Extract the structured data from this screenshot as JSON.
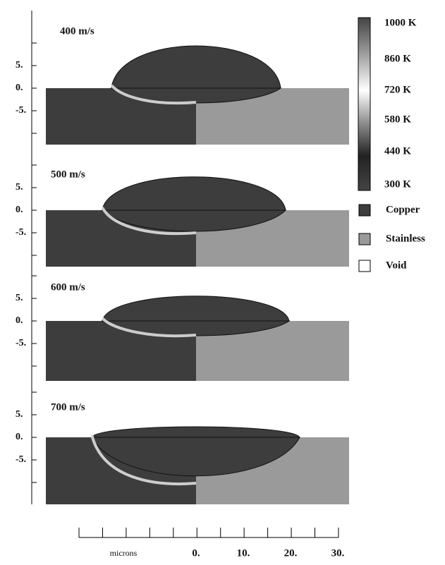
{
  "panels": [
    {
      "label": "400 m/s",
      "yticks": [
        "5.",
        "0.",
        "-5."
      ]
    },
    {
      "label": "500 m/s",
      "yticks": [
        "5.",
        "0.",
        "-5."
      ]
    },
    {
      "label": "600 m/s",
      "yticks": [
        "5.",
        "0.",
        "-5."
      ]
    },
    {
      "label": "700 m/s",
      "yticks": [
        "5.",
        "0.",
        "-5."
      ]
    }
  ],
  "colorbar": {
    "labels": [
      "1000 K",
      "860 K",
      "720 K",
      "580 K",
      "440 K",
      "300 K"
    ]
  },
  "legend": [
    {
      "name": "Copper",
      "color": "#3d3d3d"
    },
    {
      "name": "Stainless",
      "color": "#9a9a9a"
    },
    {
      "name": "Void",
      "color": "#ffffff"
    }
  ],
  "x_axis": {
    "label": "microns",
    "ticks": [
      "0.",
      "10.",
      "20.",
      "30."
    ]
  }
}
